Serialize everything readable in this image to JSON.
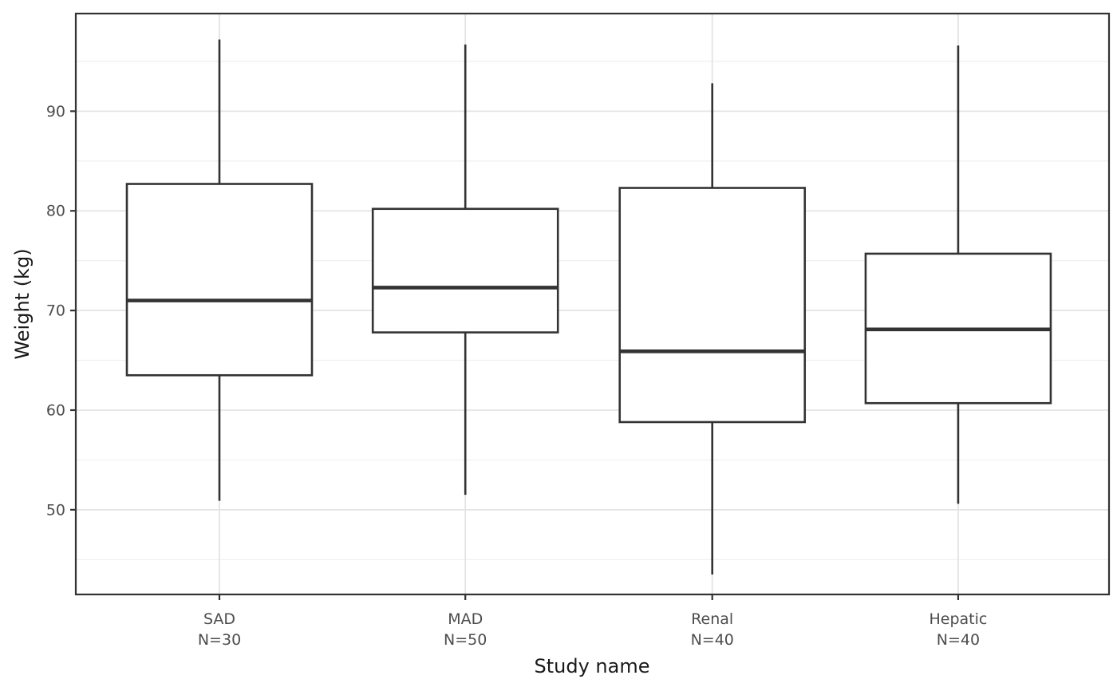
{
  "chart_data": {
    "type": "boxplot",
    "title": "",
    "xlabel": "Study name",
    "ylabel": "Weight (kg)",
    "ylim": [
      41.5,
      99.8
    ],
    "y_major_ticks": [
      50,
      60,
      70,
      80,
      90
    ],
    "y_minor_gridlines": [
      45,
      55,
      65,
      75,
      85,
      95
    ],
    "grid": "horizontal major+minor, vertical major at category centers",
    "legend_position": "none",
    "categories": [
      "SAD",
      "MAD",
      "Renal",
      "Hepatic"
    ],
    "x_tick_labels": [
      [
        "SAD",
        "N=30"
      ],
      [
        "MAD",
        "N=50"
      ],
      [
        "Renal",
        "N=40"
      ],
      [
        "Hepatic",
        "N=40"
      ]
    ],
    "series": [
      {
        "name": "SAD",
        "n": 30,
        "whisker_low": 50.9,
        "q1": 63.5,
        "median": 71.0,
        "q3": 82.7,
        "whisker_high": 97.2
      },
      {
        "name": "MAD",
        "n": 50,
        "whisker_low": 51.5,
        "q1": 67.8,
        "median": 72.3,
        "q3": 80.2,
        "whisker_high": 96.7
      },
      {
        "name": "Renal",
        "n": 40,
        "whisker_low": 43.5,
        "q1": 58.8,
        "median": 65.9,
        "q3": 82.3,
        "whisker_high": 92.8
      },
      {
        "name": "Hepatic",
        "n": 40,
        "whisker_low": 50.6,
        "q1": 60.7,
        "median": 68.1,
        "q3": 75.7,
        "whisker_high": 96.6
      }
    ]
  },
  "colors": {
    "box_stroke": "#333333",
    "box_fill": "#ffffff",
    "panel_border": "#333333",
    "grid_major": "#e4e4e4",
    "grid_minor": "#f1f1f1",
    "tick_mark": "#333333",
    "tick_label": "#4d4d4d",
    "axis_title": "#1a1a1a",
    "background": "#ffffff"
  }
}
